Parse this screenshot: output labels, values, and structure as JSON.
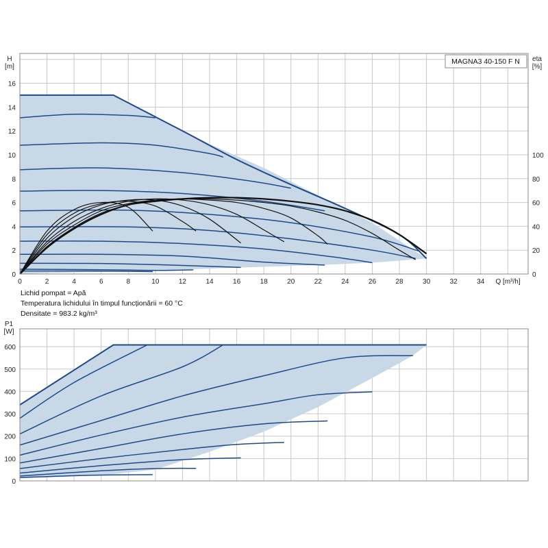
{
  "model": "MAGNA3 40-150 F N",
  "notes": [
    "Lichid pompat = Apă",
    "Temperatura lichidului în timpul funcționării = 60 °C",
    "Densitate = 983.2 kg/m³"
  ],
  "colors": {
    "curve": "#1d4a86",
    "fill": "#c9d8e6",
    "eta": "#111111",
    "grid": "#c8c8c8",
    "frame": "#888888"
  },
  "chart_data": [
    {
      "type": "line",
      "xlabel": "Q [m³/h]",
      "ylabel": "H\n[m]",
      "ylabel_right": "eta\n[%]",
      "xlim": [
        0,
        37.5
      ],
      "ylim": [
        0,
        18.5
      ],
      "ylim_right": [
        0,
        185
      ],
      "xticks": [
        0,
        2,
        4,
        6,
        8,
        10,
        12,
        14,
        16,
        18,
        20,
        22,
        24,
        26,
        28,
        30,
        32,
        34
      ],
      "yticks": [
        0,
        2,
        4,
        6,
        8,
        10,
        12,
        14,
        16
      ],
      "yticks_right": [
        0,
        20,
        40,
        60,
        80,
        100
      ],
      "grid": true,
      "envelope": [
        [
          0,
          15
        ],
        [
          6.9,
          15
        ],
        [
          10,
          13.2
        ],
        [
          14,
          10.9
        ],
        [
          18,
          8.9
        ],
        [
          22,
          6.6
        ],
        [
          26,
          4.3
        ],
        [
          30,
          1.3
        ],
        [
          26,
          0.95
        ],
        [
          22,
          0.75
        ],
        [
          18,
          0.6
        ],
        [
          14,
          0.45
        ],
        [
          10,
          0.3
        ],
        [
          6,
          0.18
        ],
        [
          2,
          0.08
        ],
        [
          0,
          0
        ]
      ],
      "series": [
        {
          "values": [
            [
              0,
              15.0
            ],
            [
              6.9,
              15.0
            ],
            [
              12,
              12.0
            ],
            [
              16,
              9.6
            ],
            [
              20,
              7.5
            ],
            [
              24,
              5.5
            ],
            [
              28,
              3.3
            ],
            [
              30,
              1.3
            ]
          ]
        },
        {
          "values": [
            [
              0,
              13.1
            ],
            [
              4,
              13.4
            ],
            [
              8,
              13.3
            ],
            [
              10,
              13.1
            ]
          ]
        },
        {
          "values": [
            [
              0,
              10.8
            ],
            [
              6,
              11.0
            ],
            [
              10,
              10.8
            ],
            [
              14,
              10.1
            ],
            [
              15,
              9.8
            ]
          ]
        },
        {
          "values": [
            [
              0,
              8.75
            ],
            [
              6,
              8.9
            ],
            [
              12,
              8.5
            ],
            [
              17,
              7.8
            ],
            [
              20,
              7.2
            ]
          ]
        },
        {
          "values": [
            [
              0,
              6.95
            ],
            [
              6,
              7.0
            ],
            [
              12,
              6.75
            ],
            [
              18,
              6.1
            ],
            [
              22.5,
              5.3
            ]
          ]
        },
        {
          "values": [
            [
              0,
              5.3
            ],
            [
              8,
              5.35
            ],
            [
              14,
              5.0
            ],
            [
              20,
              4.3
            ],
            [
              26,
              3.1
            ],
            [
              29.5,
              1.9
            ]
          ]
        },
        {
          "values": [
            [
              0,
              3.95
            ],
            [
              8,
              3.95
            ],
            [
              14,
              3.65
            ],
            [
              20,
              2.95
            ],
            [
              26,
              2.0
            ],
            [
              29.2,
              1.3
            ]
          ]
        },
        {
          "values": [
            [
              0,
              2.75
            ],
            [
              6,
              2.75
            ],
            [
              12,
              2.55
            ],
            [
              18,
              2.1
            ],
            [
              23,
              1.45
            ],
            [
              26,
              0.95
            ]
          ]
        },
        {
          "values": [
            [
              0,
              1.65
            ],
            [
              6,
              1.65
            ],
            [
              12,
              1.5
            ],
            [
              18,
              1.0
            ],
            [
              22.5,
              0.75
            ]
          ]
        },
        {
          "values": [
            [
              0,
              0.9
            ],
            [
              6,
              0.88
            ],
            [
              12,
              0.72
            ],
            [
              16.3,
              0.55
            ]
          ]
        },
        {
          "values": [
            [
              0,
              0.4
            ],
            [
              6,
              0.36
            ],
            [
              10,
              0.3
            ],
            [
              12.8,
              0.35
            ]
          ]
        },
        {
          "values": [
            [
              0,
              0.25
            ],
            [
              5,
              0.25
            ],
            [
              9.8,
              0.2
            ]
          ]
        }
      ],
      "eta_series": [
        {
          "values": [
            [
              0,
              0
            ],
            [
              2,
              22
            ],
            [
              4,
              38
            ],
            [
              6,
              50
            ],
            [
              8,
              58
            ],
            [
              10,
              61
            ],
            [
              12,
              63
            ],
            [
              14,
              64
            ],
            [
              16,
              64
            ],
            [
              18,
              63
            ],
            [
              20,
              61
            ],
            [
              22,
              58
            ],
            [
              24,
              53
            ],
            [
              26,
              45
            ],
            [
              28,
              33
            ],
            [
              30,
              17
            ]
          ]
        },
        {
          "values": [
            [
              0,
              0
            ],
            [
              2,
              23
            ],
            [
              4,
              39
            ],
            [
              6,
              51
            ],
            [
              8,
              58
            ],
            [
              10,
              62
            ],
            [
              12,
              63
            ],
            [
              14,
              63
            ],
            [
              16,
              62
            ],
            [
              18,
              60
            ],
            [
              20,
              57
            ],
            [
              22,
              52
            ],
            [
              24,
              45
            ],
            [
              26,
              34
            ],
            [
              28,
              20
            ],
            [
              29.2,
              12
            ]
          ]
        },
        {
          "values": [
            [
              0,
              0
            ],
            [
              2,
              25
            ],
            [
              4,
              41
            ],
            [
              6,
              53
            ],
            [
              8,
              59
            ],
            [
              10,
              62
            ],
            [
              12,
              63
            ],
            [
              14,
              62
            ],
            [
              16,
              60
            ],
            [
              18,
              55
            ],
            [
              20,
              47
            ],
            [
              22,
              32
            ],
            [
              22.7,
              25
            ]
          ]
        },
        {
          "values": [
            [
              0,
              0
            ],
            [
              2,
              27
            ],
            [
              4,
              44
            ],
            [
              6,
              55
            ],
            [
              8,
              61
            ],
            [
              10,
              63
            ],
            [
              12,
              62
            ],
            [
              14,
              58
            ],
            [
              16,
              50
            ],
            [
              18,
              37
            ],
            [
              19.5,
              27
            ]
          ]
        },
        {
          "values": [
            [
              0,
              0
            ],
            [
              2,
              30
            ],
            [
              4,
              48
            ],
            [
              6,
              58
            ],
            [
              8,
              62
            ],
            [
              10,
              62
            ],
            [
              12,
              57
            ],
            [
              14,
              46
            ],
            [
              16.3,
              26
            ]
          ]
        },
        {
          "values": [
            [
              0,
              0
            ],
            [
              2,
              33
            ],
            [
              4,
              51
            ],
            [
              6,
              59
            ],
            [
              8,
              61
            ],
            [
              10,
              57
            ],
            [
              12,
              44
            ],
            [
              13,
              36
            ]
          ]
        },
        {
          "values": [
            [
              0,
              0
            ],
            [
              2,
              36
            ],
            [
              4,
              54
            ],
            [
              6,
              60
            ],
            [
              8,
              56
            ],
            [
              9.8,
              36
            ]
          ]
        }
      ]
    },
    {
      "type": "line",
      "xlabel": "",
      "ylabel": "P1\n[W]",
      "xlim": [
        0,
        37.5
      ],
      "ylim": [
        0,
        680
      ],
      "yticks": [
        0,
        100,
        200,
        300,
        400,
        500,
        600
      ],
      "grid": true,
      "envelope": [
        [
          0,
          340
        ],
        [
          6.9,
          608
        ],
        [
          30,
          608
        ],
        [
          29,
          560
        ],
        [
          26,
          460
        ],
        [
          22,
          330
        ],
        [
          18,
          220
        ],
        [
          14,
          130
        ],
        [
          10,
          50
        ],
        [
          6,
          25
        ],
        [
          2,
          15
        ],
        [
          0,
          12
        ]
      ],
      "series": [
        {
          "values": [
            [
              0,
              340
            ],
            [
              6.9,
              608
            ],
            [
              30,
              608
            ]
          ]
        },
        {
          "values": [
            [
              0,
              280
            ],
            [
              4,
              440
            ],
            [
              9.4,
              608
            ]
          ]
        },
        {
          "values": [
            [
              0,
              210
            ],
            [
              6,
              380
            ],
            [
              12,
              510
            ],
            [
              15,
              608
            ]
          ]
        },
        {
          "values": [
            [
              0,
              160
            ],
            [
              6,
              270
            ],
            [
              12,
              380
            ],
            [
              18,
              470
            ],
            [
              24,
              550
            ],
            [
              29,
              560
            ]
          ]
        },
        {
          "values": [
            [
              0,
              115
            ],
            [
              6,
              205
            ],
            [
              12,
              285
            ],
            [
              18,
              345
            ],
            [
              22,
              385
            ],
            [
              26,
              398
            ]
          ]
        },
        {
          "values": [
            [
              0,
              80
            ],
            [
              6,
              145
            ],
            [
              12,
              210
            ],
            [
              18,
              255
            ],
            [
              22.7,
              268
            ]
          ]
        },
        {
          "values": [
            [
              0,
              55
            ],
            [
              6,
              100
            ],
            [
              12,
              140
            ],
            [
              16,
              163
            ],
            [
              19.5,
              172
            ]
          ]
        },
        {
          "values": [
            [
              0,
              35
            ],
            [
              6,
              68
            ],
            [
              12,
              95
            ],
            [
              16.3,
              103
            ]
          ]
        },
        {
          "values": [
            [
              0,
              22
            ],
            [
              6,
              45
            ],
            [
              10,
              55
            ],
            [
              13,
              56
            ]
          ]
        },
        {
          "values": [
            [
              0,
              15
            ],
            [
              5,
              25
            ],
            [
              9.8,
              28
            ]
          ]
        }
      ]
    }
  ]
}
